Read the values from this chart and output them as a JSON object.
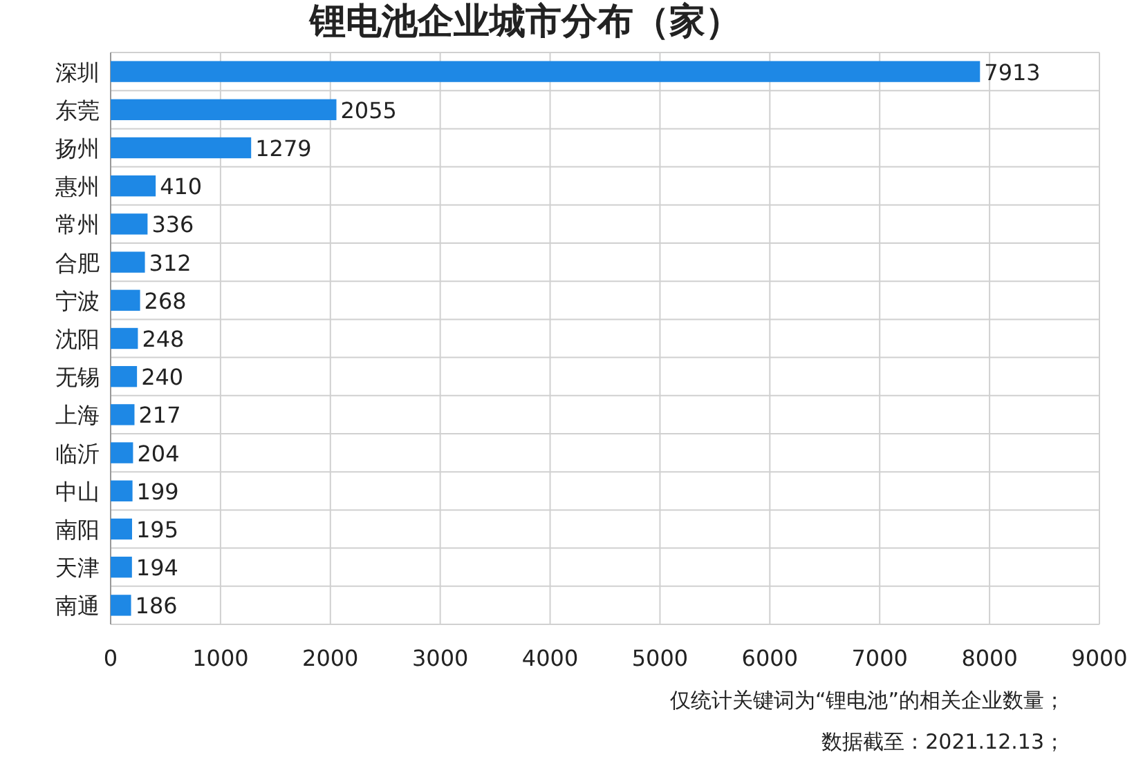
{
  "chart_data": {
    "type": "bar",
    "orientation": "horizontal",
    "title": "锂电池企业城市分布（家）",
    "categories": [
      "深圳",
      "东莞",
      "扬州",
      "惠州",
      "常州",
      "合肥",
      "宁波",
      "沈阳",
      "无锡",
      "上海",
      "临沂",
      "中山",
      "南阳",
      "天津",
      "南通"
    ],
    "values": [
      7913,
      2055,
      1279,
      410,
      336,
      312,
      268,
      248,
      240,
      217,
      204,
      199,
      195,
      194,
      186
    ],
    "color": "#1e88e5",
    "xlim": [
      0,
      9000
    ],
    "xticks": [
      0,
      1000,
      2000,
      3000,
      4000,
      5000,
      6000,
      7000,
      8000,
      9000
    ],
    "grid": true,
    "data_labels": true,
    "annotations": [
      "仅统计关键词为“锂电池”的相关企业数量；",
      "数据截至：2021.12.13；"
    ]
  }
}
